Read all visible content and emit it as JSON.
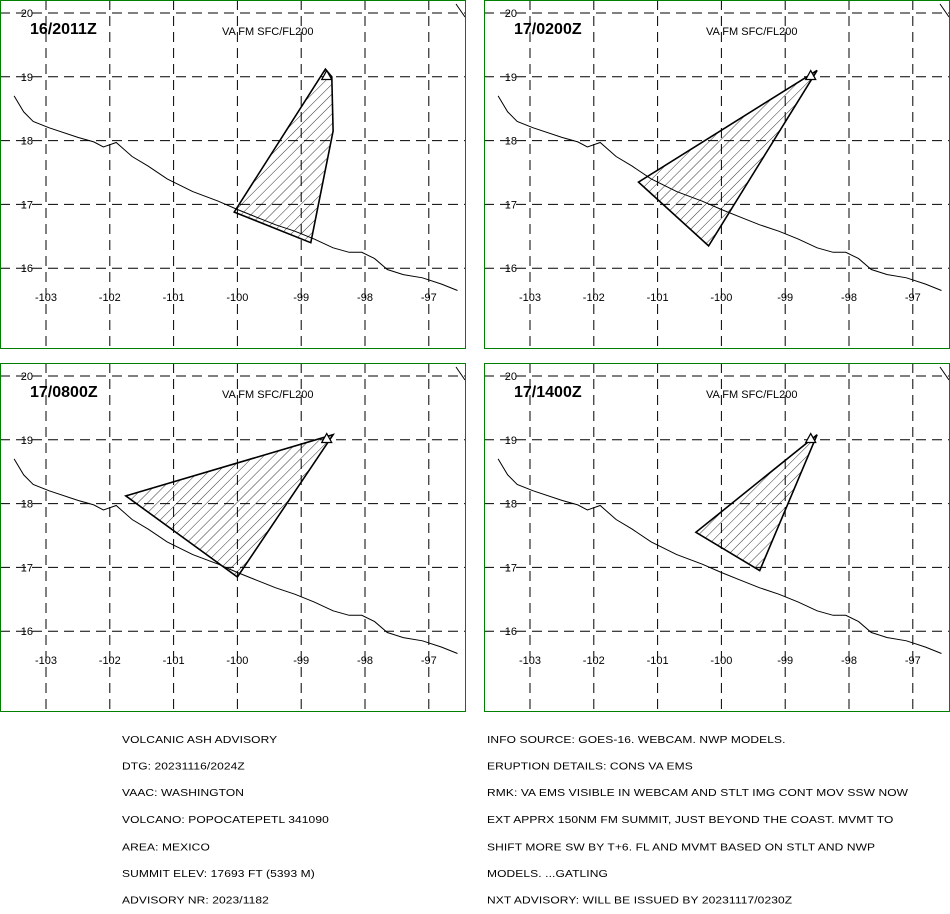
{
  "map": {
    "lon_ticks": [
      "-103",
      "-102",
      "-101",
      "-100",
      "-99",
      "-98",
      "-97"
    ],
    "lat_ticks": [
      "20",
      "19",
      "18",
      "17",
      "16"
    ],
    "forecast_label": "VA FM SFC/FL200",
    "colors": {
      "frame": "#008000",
      "grid": "#000000",
      "coast": "#000000",
      "ash": "#000000"
    },
    "volcano": {
      "lon": -98.6,
      "lat": 19.02
    },
    "coastline": [
      [
        -103.5,
        18.7
      ],
      [
        -103.35,
        18.45
      ],
      [
        -103.2,
        18.3
      ],
      [
        -102.95,
        18.2
      ],
      [
        -102.5,
        18.05
      ],
      [
        -102.25,
        17.98
      ],
      [
        -102.1,
        17.9
      ],
      [
        -101.9,
        17.97
      ],
      [
        -101.65,
        17.75
      ],
      [
        -101.4,
        17.6
      ],
      [
        -101.1,
        17.4
      ],
      [
        -100.7,
        17.2
      ],
      [
        -100.3,
        17.05
      ],
      [
        -100.0,
        16.92
      ],
      [
        -99.7,
        16.8
      ],
      [
        -99.4,
        16.68
      ],
      [
        -99.1,
        16.58
      ],
      [
        -98.8,
        16.46
      ],
      [
        -98.5,
        16.32
      ],
      [
        -98.25,
        16.25
      ],
      [
        -98.05,
        16.25
      ],
      [
        -97.85,
        16.15
      ],
      [
        -97.65,
        15.98
      ],
      [
        -97.4,
        15.9
      ],
      [
        -97.1,
        15.85
      ],
      [
        -96.8,
        15.75
      ],
      [
        -96.55,
        15.65
      ]
    ]
  },
  "panels": [
    {
      "time_label": "16/2011Z",
      "ash": [
        [
          -98.62,
          19.12
        ],
        [
          -98.52,
          19.0
        ],
        [
          -98.5,
          18.15
        ],
        [
          -98.85,
          16.4
        ],
        [
          -100.05,
          16.88
        ]
      ]
    },
    {
      "time_label": "17/0200Z",
      "ash": [
        [
          -98.5,
          19.1
        ],
        [
          -100.2,
          16.35
        ],
        [
          -101.3,
          17.35
        ]
      ]
    },
    {
      "time_label": "17/0800Z",
      "ash": [
        [
          -98.5,
          19.08
        ],
        [
          -100.0,
          16.85
        ],
        [
          -101.75,
          18.12
        ]
      ]
    },
    {
      "time_label": "17/1400Z",
      "ash": [
        [
          -98.5,
          19.08
        ],
        [
          -99.4,
          16.95
        ],
        [
          -100.4,
          17.55
        ]
      ]
    }
  ],
  "advisory": {
    "left_lines": [
      "VOLCANIC ASH ADVISORY",
      "DTG: 20231116/2024Z",
      "VAAC: WASHINGTON",
      "VOLCANO: POPOCATEPETL 341090",
      "AREA: MEXICO",
      "SUMMIT ELEV: 17693 FT (5393 M)",
      "ADVISORY NR: 2023/1182"
    ],
    "right_lines": [
      "INFO SOURCE: GOES-16. WEBCAM. NWP MODELS.",
      "ERUPTION DETAILS: CONS VA EMS",
      "RMK: VA EMS VISIBLE IN WEBCAM AND STLT IMG CONT MOV SSW NOW",
      "EXT APPRX 150NM FM SUMMIT, JUST BEYOND THE COAST. MVMT TO",
      "SHIFT MORE SW BY T+6. FL AND MVMT BASED ON STLT AND NWP",
      "MODELS. ...GATLING",
      "NXT ADVISORY: WILL BE ISSUED BY 20231117/0230Z"
    ]
  }
}
